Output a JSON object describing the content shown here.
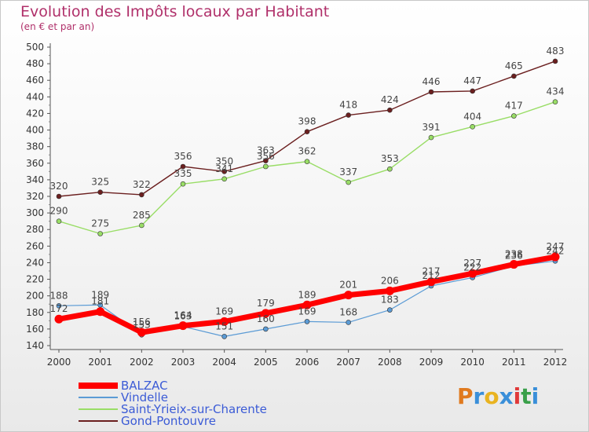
{
  "chart_data": {
    "type": "line",
    "title": "Evolution des Impôts locaux par Habitant",
    "subtitle": "(en € et par an)",
    "x": [
      "2000",
      "2001",
      "2002",
      "2003",
      "2004",
      "2005",
      "2006",
      "2007",
      "2008",
      "2009",
      "2010",
      "2011",
      "2012"
    ],
    "ylim": [
      140,
      500
    ],
    "yticks": [
      140,
      160,
      180,
      200,
      220,
      240,
      260,
      280,
      300,
      320,
      340,
      360,
      380,
      400,
      420,
      440,
      460,
      480,
      500
    ],
    "grid": false,
    "legend_position": "bottom-left",
    "series": [
      {
        "name": "BALZAC",
        "color": "#ff0000",
        "values": [
          172,
          181,
          156,
          164,
          169,
          179,
          189,
          201,
          206,
          217,
          227,
          238,
          247
        ]
      },
      {
        "name": "Vindelle",
        "color": "#5b9bd5",
        "values": [
          188,
          189,
          153,
          163,
          151,
          160,
          169,
          168,
          183,
          212,
          222,
          236,
          242
        ]
      },
      {
        "name": "Saint-Yrieix-sur-Charente",
        "color": "#99dd66",
        "values": [
          290,
          275,
          285,
          335,
          341,
          356,
          362,
          337,
          353,
          391,
          404,
          417,
          434
        ]
      },
      {
        "name": "Gond-Pontouvre",
        "color": "#6b1f1f",
        "values": [
          320,
          325,
          322,
          356,
          350,
          363,
          398,
          418,
          424,
          446,
          447,
          465,
          483
        ]
      }
    ]
  },
  "logo": {
    "text": "Proxiti",
    "colors": [
      "#e07a1f",
      "#3a8fd9",
      "#e9b320",
      "#3a8fd9",
      "#e03a3a",
      "#3aa04a",
      "#3a8fd9"
    ]
  }
}
